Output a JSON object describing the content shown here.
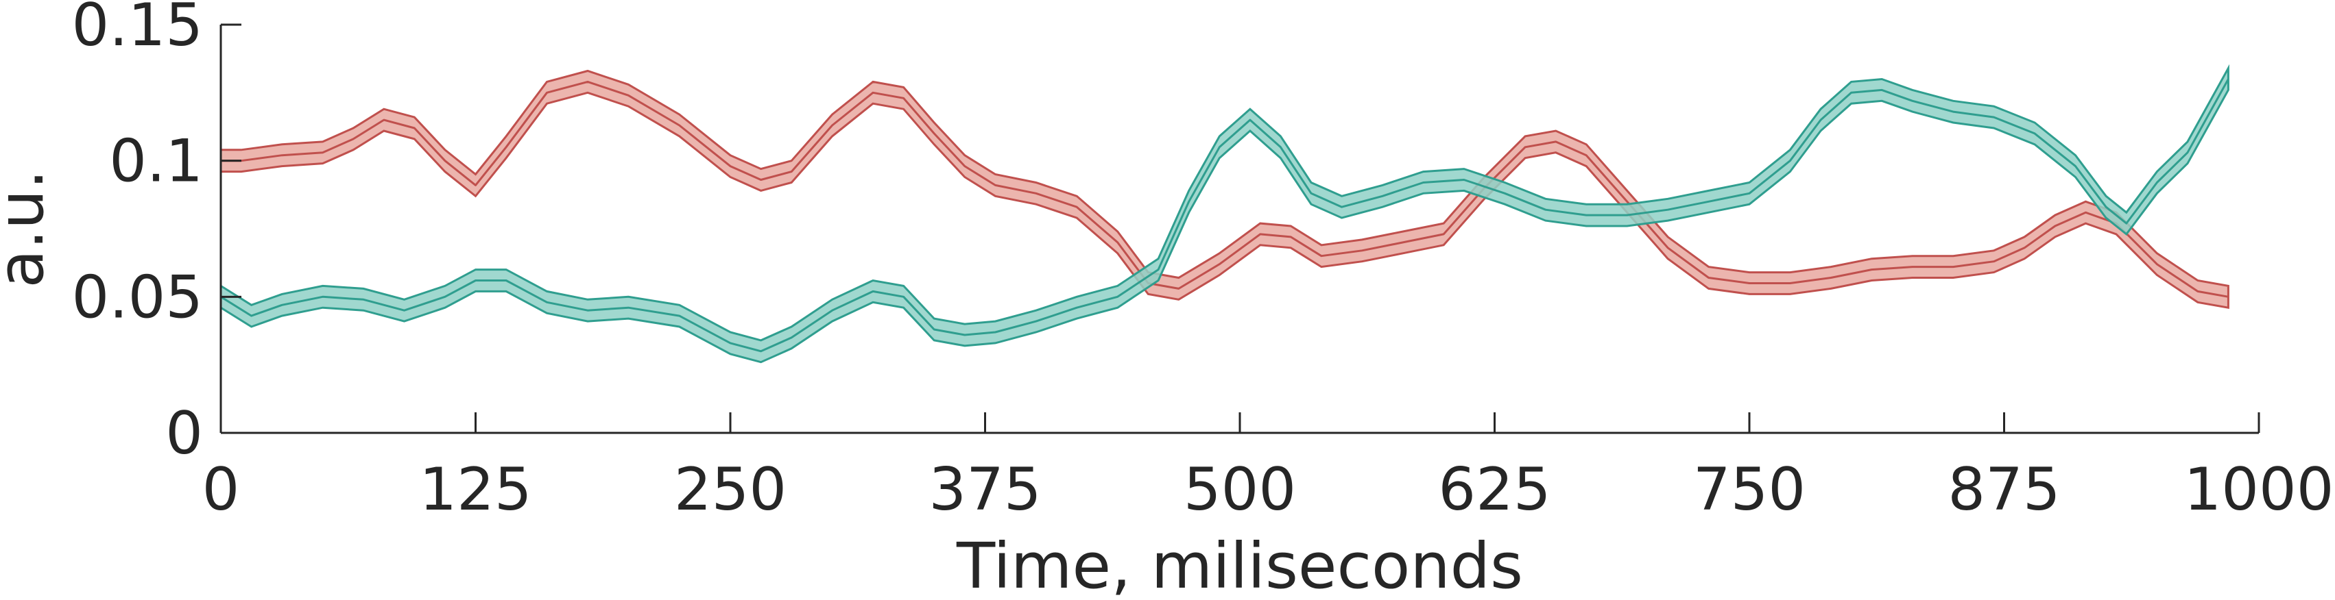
{
  "chart_data": {
    "type": "line",
    "xlabel": "Time, miliseconds",
    "ylabel": "a.u.",
    "xlim": [
      0,
      1000
    ],
    "ylim": [
      0,
      0.15
    ],
    "xticks": [
      0,
      125,
      250,
      375,
      500,
      625,
      750,
      875,
      1000
    ],
    "xtick_labels": [
      "0",
      "125",
      "250",
      "375",
      "500",
      "625",
      "750",
      "875",
      "1000"
    ],
    "yticks": [
      0,
      0.05,
      0.1,
      0.15
    ],
    "ytick_labels": [
      "0",
      "0.05",
      "0.1",
      "0.15"
    ],
    "grid": false,
    "legend": "none",
    "series": [
      {
        "color": "#c0504d",
        "fill": "#e9a8a0",
        "error_band": 0.004,
        "x": [
          0,
          10,
          30,
          50,
          65,
          80,
          95,
          110,
          125,
          140,
          160,
          180,
          200,
          225,
          250,
          265,
          280,
          300,
          320,
          335,
          350,
          365,
          380,
          400,
          420,
          440,
          455,
          470,
          490,
          510,
          525,
          540,
          560,
          580,
          600,
          620,
          640,
          655,
          670,
          690,
          710,
          730,
          750,
          770,
          790,
          810,
          830,
          850,
          870,
          885,
          900,
          915,
          930,
          950,
          970,
          985
        ],
        "y": [
          0.1,
          0.1,
          0.102,
          0.103,
          0.108,
          0.115,
          0.112,
          0.1,
          0.091,
          0.105,
          0.125,
          0.129,
          0.124,
          0.113,
          0.098,
          0.093,
          0.096,
          0.113,
          0.125,
          0.123,
          0.11,
          0.098,
          0.091,
          0.088,
          0.083,
          0.07,
          0.055,
          0.053,
          0.062,
          0.073,
          0.072,
          0.065,
          0.067,
          0.07,
          0.073,
          0.09,
          0.105,
          0.107,
          0.102,
          0.085,
          0.068,
          0.057,
          0.055,
          0.055,
          0.057,
          0.06,
          0.061,
          0.061,
          0.063,
          0.068,
          0.076,
          0.081,
          0.077,
          0.062,
          0.052,
          0.05
        ]
      },
      {
        "color": "#2f9e8f",
        "fill": "#8fd1c7",
        "error_band": 0.004,
        "x": [
          0,
          15,
          30,
          50,
          70,
          90,
          110,
          125,
          140,
          160,
          180,
          200,
          225,
          250,
          265,
          280,
          300,
          320,
          335,
          350,
          365,
          380,
          400,
          420,
          440,
          460,
          475,
          490,
          505,
          520,
          535,
          550,
          570,
          590,
          610,
          630,
          650,
          670,
          690,
          710,
          730,
          750,
          770,
          785,
          800,
          815,
          830,
          850,
          870,
          890,
          910,
          925,
          935,
          950,
          965,
          985
        ],
        "y": [
          0.05,
          0.043,
          0.047,
          0.05,
          0.049,
          0.045,
          0.05,
          0.056,
          0.056,
          0.048,
          0.045,
          0.046,
          0.043,
          0.033,
          0.03,
          0.035,
          0.045,
          0.052,
          0.05,
          0.038,
          0.036,
          0.037,
          0.041,
          0.046,
          0.05,
          0.06,
          0.085,
          0.105,
          0.115,
          0.105,
          0.088,
          0.083,
          0.087,
          0.092,
          0.093,
          0.088,
          0.082,
          0.08,
          0.08,
          0.082,
          0.085,
          0.088,
          0.1,
          0.115,
          0.125,
          0.126,
          0.122,
          0.118,
          0.116,
          0.11,
          0.098,
          0.083,
          0.077,
          0.092,
          0.103,
          0.13
        ]
      }
    ]
  }
}
